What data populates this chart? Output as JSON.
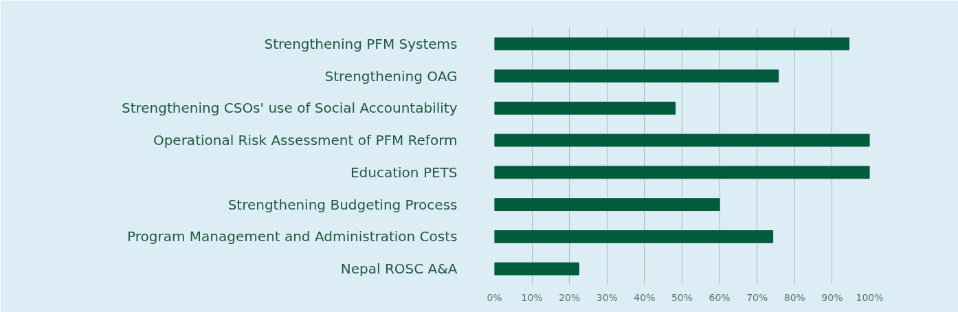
{
  "chart_data": {
    "type": "bar",
    "orientation": "horizontal",
    "categories": [
      "Strengthening PFM Systems",
      "Strengthening OAG",
      "Strengthening CSOs' use of Social Accountability",
      "Operational Risk Assessment of PFM Reform",
      "Education PETS",
      "Strengthening Budgeting Process",
      "Program Management and Administration Costs",
      "Nepal ROSC A&A"
    ],
    "values": [
      94.5,
      75.7,
      48.2,
      100,
      100,
      60,
      74.2,
      22.5
    ],
    "color": "#005c3c",
    "xlim": [
      0,
      100
    ],
    "xticks": [
      {
        "value": 0,
        "label": "0%"
      },
      {
        "value": 10,
        "label": "10%"
      },
      {
        "value": 20,
        "label": "20%"
      },
      {
        "value": 30,
        "label": "30%"
      },
      {
        "value": 40,
        "label": "40%"
      },
      {
        "value": 50,
        "label": "50%"
      },
      {
        "value": 60,
        "label": "60%"
      },
      {
        "value": 70,
        "label": "70%"
      },
      {
        "value": 80,
        "label": "80%"
      },
      {
        "value": 90,
        "label": "90%"
      },
      {
        "value": 100,
        "label": "100%"
      }
    ],
    "grid": "x"
  }
}
